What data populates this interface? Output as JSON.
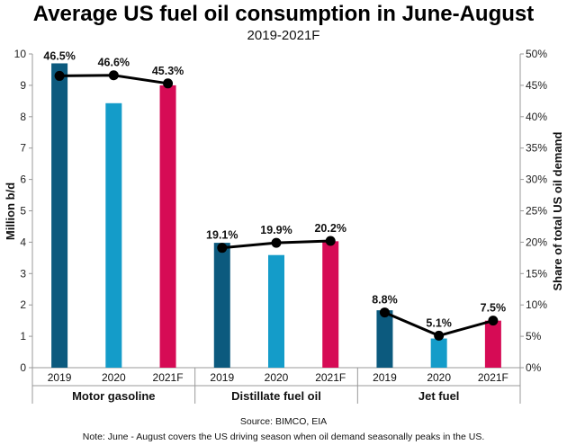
{
  "chart_data": {
    "type": "bar",
    "title": "Average US fuel oil consumption in June-August",
    "subtitle": "2019-2021F",
    "ylabel": "Million b/d",
    "y2label": "Share of total US oil demand",
    "ylim": [
      0,
      10
    ],
    "y2lim": [
      0,
      50
    ],
    "yticks": [
      "0",
      "1",
      "2",
      "3",
      "4",
      "5",
      "6",
      "7",
      "8",
      "9",
      "10"
    ],
    "y2ticks": [
      "0%",
      "5%",
      "10%",
      "15%",
      "20%",
      "25%",
      "30%",
      "35%",
      "40%",
      "45%",
      "50%"
    ],
    "grid": false,
    "groups": [
      {
        "name": "Motor gasoline",
        "categories": [
          "2019",
          "2020",
          "2021F"
        ],
        "values": [
          9.7,
          8.43,
          9.0
        ],
        "share": [
          46.5,
          46.6,
          45.3
        ],
        "share_labels": [
          "46.5%",
          "46.6%",
          "45.3%"
        ]
      },
      {
        "name": "Distillate fuel oil",
        "categories": [
          "2019",
          "2020",
          "2021F"
        ],
        "values": [
          3.98,
          3.59,
          4.03
        ],
        "share": [
          19.1,
          19.9,
          20.2
        ],
        "share_labels": [
          "19.1%",
          "19.9%",
          "20.2%"
        ]
      },
      {
        "name": "Jet fuel",
        "categories": [
          "2019",
          "2020",
          "2021F"
        ],
        "values": [
          1.83,
          0.93,
          1.5
        ],
        "share": [
          8.8,
          5.1,
          7.5
        ],
        "share_labels": [
          "8.8%",
          "5.1%",
          "7.5%"
        ]
      }
    ],
    "colors": [
      "#0c5a7e",
      "#149cc9",
      "#d60b55"
    ],
    "line_color": "#000000"
  },
  "footer": {
    "source": "Source: BIMCO, EIA",
    "note": "Note: June - August covers the US driving season when oil demand seasonally peaks in the US."
  }
}
